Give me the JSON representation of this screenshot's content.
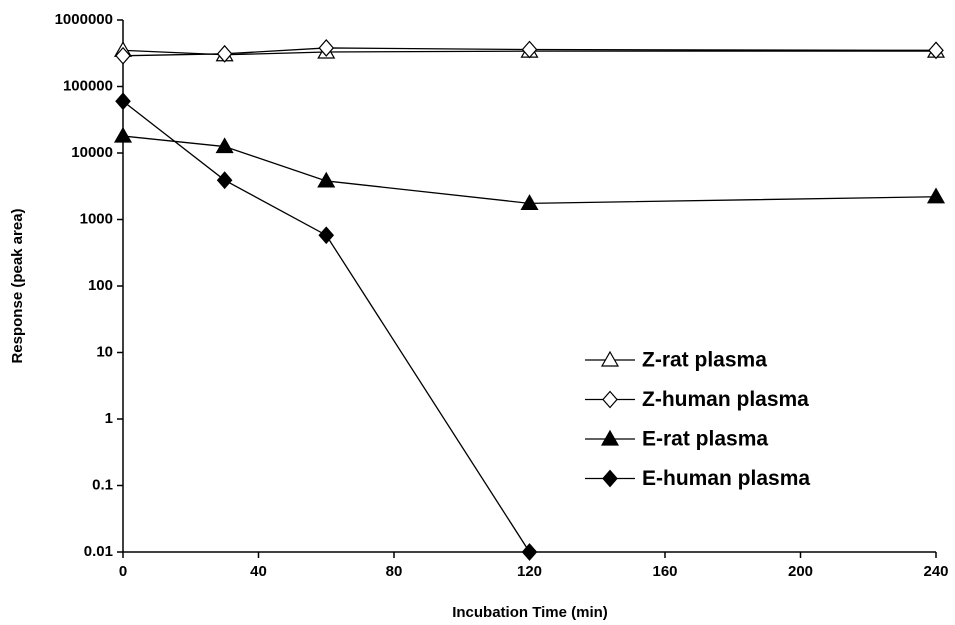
{
  "chart_data": {
    "type": "line",
    "x_label": "Incubation Time (min)",
    "y_label": "Response (peak area)",
    "x": [
      0,
      30,
      60,
      120,
      240
    ],
    "xlim": [
      0,
      240
    ],
    "xticks": [
      0,
      40,
      80,
      120,
      160,
      200,
      240
    ],
    "ylim": [
      0.01,
      1000000
    ],
    "yticks": [
      0.01,
      0.1,
      1,
      10,
      100,
      1000,
      10000,
      100000,
      1000000
    ],
    "y_scale": "log",
    "grid": false,
    "legend_loc": "right",
    "series": [
      {
        "name": "Z-rat plasma",
        "color": "#000000",
        "marker": "triangle",
        "filled": false,
        "values": [
          350000,
          300000,
          330000,
          340000,
          340000
        ]
      },
      {
        "name": "Z-human plasma",
        "color": "#000000",
        "marker": "diamond",
        "filled": false,
        "values": [
          290000,
          310000,
          380000,
          360000,
          350000
        ]
      },
      {
        "name": "E-rat plasma",
        "color": "#000000",
        "marker": "triangle",
        "filled": true,
        "values": [
          18000,
          12500,
          3800,
          1750,
          2200
        ]
      },
      {
        "name": "E-human plasma",
        "color": "#000000",
        "marker": "diamond",
        "filled": true,
        "values": [
          60000,
          3900,
          580,
          0.01,
          null
        ]
      }
    ]
  }
}
